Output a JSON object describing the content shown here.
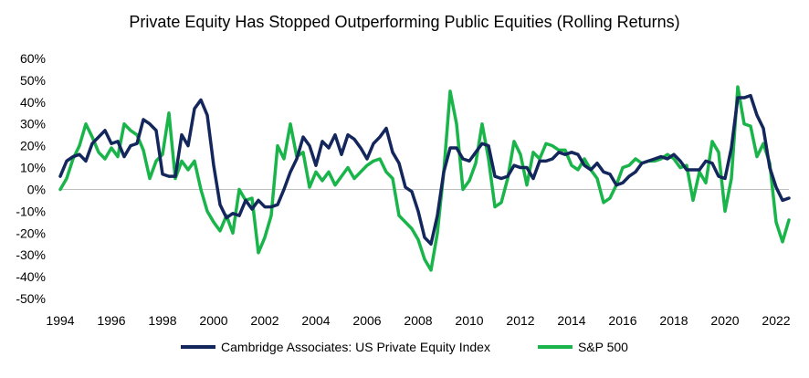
{
  "chart_data": {
    "type": "line",
    "title": "Private Equity Has Stopped Outperforming Public Equities (Rolling Returns)",
    "xlabel": "",
    "ylabel": "",
    "xlim": [
      1994,
      2022.5
    ],
    "ylim": [
      -0.5,
      0.6
    ],
    "x_ticks": [
      "1994",
      "1996",
      "1998",
      "2000",
      "2002",
      "2004",
      "2006",
      "2008",
      "2010",
      "2012",
      "2014",
      "2016",
      "2018",
      "2020",
      "2022"
    ],
    "y_ticks": [
      "60%",
      "50%",
      "40%",
      "30%",
      "20%",
      "10%",
      "0%",
      "-10%",
      "-20%",
      "-30%",
      "-40%",
      "-50%"
    ],
    "grid": false,
    "legend_position": "bottom",
    "x": [
      1994.0,
      1994.25,
      1994.5,
      1994.75,
      1995.0,
      1995.25,
      1995.5,
      1995.75,
      1996.0,
      1996.25,
      1996.5,
      1996.75,
      1997.0,
      1997.25,
      1997.5,
      1997.75,
      1998.0,
      1998.25,
      1998.5,
      1998.75,
      1999.0,
      1999.25,
      1999.5,
      1999.75,
      2000.0,
      2000.25,
      2000.5,
      2000.75,
      2001.0,
      2001.25,
      2001.5,
      2001.75,
      2002.0,
      2002.25,
      2002.5,
      2002.75,
      2003.0,
      2003.25,
      2003.5,
      2003.75,
      2004.0,
      2004.25,
      2004.5,
      2004.75,
      2005.0,
      2005.25,
      2005.5,
      2005.75,
      2006.0,
      2006.25,
      2006.5,
      2006.75,
      2007.0,
      2007.25,
      2007.5,
      2007.75,
      2008.0,
      2008.25,
      2008.5,
      2008.75,
      2009.0,
      2009.25,
      2009.5,
      2009.75,
      2010.0,
      2010.25,
      2010.5,
      2010.75,
      2011.0,
      2011.25,
      2011.5,
      2011.75,
      2012.0,
      2012.25,
      2012.5,
      2012.75,
      2013.0,
      2013.25,
      2013.5,
      2013.75,
      2014.0,
      2014.25,
      2014.5,
      2014.75,
      2015.0,
      2015.25,
      2015.5,
      2015.75,
      2016.0,
      2016.25,
      2016.5,
      2016.75,
      2017.0,
      2017.25,
      2017.5,
      2017.75,
      2018.0,
      2018.25,
      2018.5,
      2018.75,
      2019.0,
      2019.25,
      2019.5,
      2019.75,
      2020.0,
      2020.25,
      2020.5,
      2020.75,
      2021.0,
      2021.25,
      2021.5,
      2021.75,
      2022.0,
      2022.25,
      2022.5
    ],
    "series": [
      {
        "name": "Cambridge Associates: US Private Equity Index",
        "color": "#14275c",
        "values": [
          0.06,
          0.13,
          0.15,
          0.16,
          0.13,
          0.21,
          0.24,
          0.27,
          0.21,
          0.22,
          0.15,
          0.2,
          0.21,
          0.32,
          0.3,
          0.27,
          0.07,
          0.06,
          0.06,
          0.25,
          0.2,
          0.37,
          0.41,
          0.34,
          0.11,
          -0.07,
          -0.13,
          -0.11,
          -0.12,
          -0.05,
          -0.09,
          -0.05,
          -0.08,
          -0.08,
          -0.07,
          0.0,
          0.08,
          0.14,
          0.24,
          0.2,
          0.11,
          0.22,
          0.19,
          0.25,
          0.16,
          0.25,
          0.23,
          0.19,
          0.14,
          0.21,
          0.24,
          0.28,
          0.17,
          0.12,
          0.01,
          -0.01,
          -0.1,
          -0.22,
          -0.25,
          -0.12,
          0.08,
          0.19,
          0.19,
          0.14,
          0.13,
          0.17,
          0.21,
          0.2,
          0.06,
          0.05,
          0.06,
          0.11,
          0.1,
          0.1,
          0.05,
          0.13,
          0.13,
          0.14,
          0.17,
          0.16,
          0.17,
          0.16,
          0.11,
          0.09,
          0.12,
          0.08,
          0.07,
          0.02,
          0.03,
          0.06,
          0.08,
          0.12,
          0.13,
          0.14,
          0.15,
          0.14,
          0.16,
          0.13,
          0.09,
          0.09,
          0.09,
          0.13,
          0.12,
          0.06,
          0.05,
          0.19,
          0.42,
          0.42,
          0.43,
          0.34,
          0.28,
          0.1,
          0.01,
          -0.05,
          -0.04
        ]
      },
      {
        "name": "S&P 500",
        "color": "#1ab54a",
        "values": [
          0.0,
          0.05,
          0.14,
          0.2,
          0.3,
          0.24,
          0.17,
          0.14,
          0.19,
          0.15,
          0.3,
          0.27,
          0.25,
          0.18,
          0.05,
          0.13,
          0.16,
          0.35,
          0.05,
          0.13,
          0.09,
          0.13,
          0.0,
          -0.1,
          -0.15,
          -0.19,
          -0.12,
          -0.2,
          0.0,
          -0.05,
          -0.04,
          -0.29,
          -0.22,
          -0.12,
          0.2,
          0.14,
          0.3,
          0.15,
          0.17,
          0.01,
          0.08,
          0.04,
          0.08,
          0.02,
          0.06,
          0.1,
          0.05,
          0.08,
          0.11,
          0.13,
          0.14,
          0.08,
          0.05,
          -0.12,
          -0.15,
          -0.18,
          -0.23,
          -0.32,
          -0.37,
          -0.2,
          0.08,
          0.45,
          0.3,
          0.0,
          0.04,
          0.12,
          0.3,
          0.14,
          -0.08,
          -0.06,
          0.05,
          0.22,
          0.16,
          0.02,
          0.17,
          0.14,
          0.21,
          0.2,
          0.18,
          0.18,
          0.11,
          0.09,
          0.14,
          0.09,
          0.05,
          -0.06,
          -0.04,
          0.02,
          0.1,
          0.11,
          0.14,
          0.12,
          0.13,
          0.13,
          0.14,
          0.16,
          0.14,
          0.1,
          0.11,
          -0.05,
          0.08,
          0.03,
          0.22,
          0.17,
          -0.1,
          0.05,
          0.47,
          0.3,
          0.29,
          0.15,
          0.21,
          0.12,
          -0.15,
          -0.24,
          -0.14
        ]
      }
    ]
  }
}
